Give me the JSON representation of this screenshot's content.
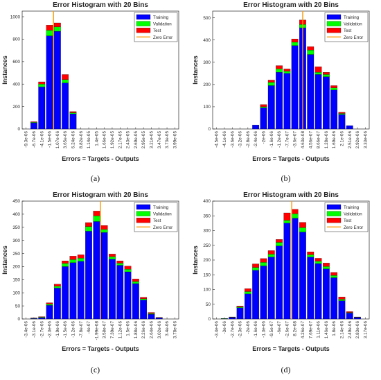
{
  "chart_data": [
    {
      "type": "bar",
      "title": "Error Histogram with 20 Bins",
      "xlabel": "Errors = Targets - Outputs",
      "ylabel": "Instances",
      "caption": "(a)",
      "ylim": [
        0,
        1050
      ],
      "yticks": [
        0,
        200,
        400,
        600,
        800,
        1000
      ],
      "categories": [
        "-9.3e-06",
        "-6.7e-06",
        "-4.1e-06",
        "-1.5e-06",
        "1.07e-06",
        "3.65e-06",
        "6.24e-06",
        "8.82e-06",
        "1.14e-05",
        "1.4e-05",
        "1.66e-05",
        "1.92e-05",
        "2.17e-05",
        "2.43e-05",
        "2.69e-05",
        "2.95e-05",
        "3.21e-05",
        "3.47e-05",
        "3.73e-05",
        "3.99e-05"
      ],
      "zero_error_index": 3.5,
      "series": [
        {
          "name": "Training",
          "color": "#0000ff",
          "values": [
            0,
            55,
            375,
            830,
            870,
            410,
            135,
            0,
            0,
            0,
            0,
            0,
            0,
            0,
            0,
            0,
            0,
            0,
            0,
            0
          ]
        },
        {
          "name": "Validation",
          "color": "#00ff00",
          "values": [
            0,
            5,
            25,
            50,
            40,
            30,
            10,
            0,
            0,
            0,
            0,
            0,
            0,
            0,
            0,
            0,
            0,
            0,
            0,
            0
          ]
        },
        {
          "name": "Test",
          "color": "#ff0000",
          "values": [
            0,
            5,
            20,
            45,
            35,
            45,
            10,
            0,
            0,
            0,
            0,
            0,
            0,
            0,
            0,
            0,
            0,
            0,
            0,
            0
          ]
        }
      ],
      "legend": [
        "Training",
        "Validation",
        "Test",
        "Zero Error"
      ],
      "zero_error_color": "#ff9900",
      "legend_position": "top-right"
    },
    {
      "type": "bar",
      "title": "Error Histogram with 20 Bins",
      "xlabel": "Errors = Targets - Outputs",
      "ylabel": "Instances",
      "caption": "(b)",
      "ylim": [
        0,
        530
      ],
      "yticks": [
        0,
        100,
        200,
        300,
        400,
        500
      ],
      "categories": [
        "-4.5e-06",
        "-4.1e-06",
        "-3.6e-06",
        "-3.2e-06",
        "-2.8e-06",
        "-2.4e-06",
        "-2e-06",
        "-1.6e-06",
        "-1.2e-06",
        "-7.7e-07",
        "-3.6e-07",
        "4.63e-08",
        "4.56e-07",
        "8.66e-07",
        "1.28e-06",
        "1.69e-06",
        "2.1e-06",
        "2.51e-06",
        "2.92e-06",
        "3.33e-06"
      ],
      "zero_error_index": 11.0,
      "series": [
        {
          "name": "Training",
          "color": "#0000ff",
          "values": [
            0,
            0,
            0,
            0,
            0,
            18,
            95,
            195,
            255,
            250,
            375,
            455,
            335,
            245,
            235,
            175,
            65,
            15,
            0,
            0
          ]
        },
        {
          "name": "Validation",
          "color": "#00ff00",
          "values": [
            0,
            0,
            0,
            0,
            0,
            0,
            5,
            15,
            15,
            10,
            15,
            15,
            20,
            10,
            10,
            10,
            5,
            0,
            0,
            0
          ]
        },
        {
          "name": "Test",
          "color": "#ff0000",
          "values": [
            0,
            0,
            0,
            0,
            0,
            0,
            10,
            10,
            15,
            10,
            15,
            20,
            15,
            25,
            10,
            10,
            5,
            0,
            0,
            0
          ]
        }
      ],
      "legend": [
        "Training",
        "Validation",
        "Test",
        "Zero Error"
      ],
      "zero_error_color": "#ff9900",
      "legend_position": "top-right"
    },
    {
      "type": "bar",
      "title": "Error Histogram with 20 Bins",
      "xlabel": "Errors = Targets - Outputs",
      "ylabel": "Instances",
      "caption": "(c)",
      "ylim": [
        0,
        450
      ],
      "yticks": [
        0,
        50,
        100,
        150,
        200,
        250,
        300,
        350,
        400,
        450
      ],
      "categories": [
        "-3.4e-06",
        "-3.1e-06",
        "-2.7e-06",
        "-2.3e-06",
        "-1.9e-06",
        "-1.5e-06",
        "-1.2e-06",
        "-7.8e-07",
        "-4e-07",
        "-1.99e-08",
        "3.58e-07",
        "7.39e-07",
        "1.12e-06",
        "1.5e-06",
        "1.88e-06",
        "2.26e-06",
        "2.64e-06",
        "3.02e-06",
        "3.4e-06",
        "3.78e-06"
      ],
      "zero_error_index": 9.5,
      "series": [
        {
          "name": "Training",
          "color": "#0000ff",
          "values": [
            0,
            2,
            5,
            52,
            118,
            200,
            215,
            220,
            335,
            372,
            330,
            228,
            205,
            180,
            135,
            72,
            18,
            4,
            0,
            0
          ]
        },
        {
          "name": "Validation",
          "color": "#00ff00",
          "values": [
            0,
            1,
            2,
            5,
            7,
            12,
            12,
            12,
            18,
            22,
            12,
            10,
            8,
            10,
            8,
            5,
            3,
            1,
            0,
            0
          ]
        },
        {
          "name": "Test",
          "color": "#ff0000",
          "values": [
            0,
            1,
            2,
            5,
            8,
            10,
            13,
            13,
            15,
            18,
            15,
            10,
            9,
            12,
            10,
            6,
            4,
            1,
            0,
            0
          ]
        }
      ],
      "legend": [
        "Training",
        "Validation",
        "Test",
        "Zero Error"
      ],
      "zero_error_color": "#ff9900",
      "legend_position": "top-right"
    },
    {
      "type": "bar",
      "title": "Error Histogram with 20 Bins",
      "xlabel": "Errors = Targets - Outputs",
      "ylabel": "Instances",
      "caption": "(d)",
      "ylim": [
        0,
        400
      ],
      "yticks": [
        0,
        50,
        100,
        150,
        200,
        250,
        300,
        350,
        400
      ],
      "categories": [
        "-3.4e-06",
        "-3e-06",
        "-2.7e-06",
        "-2.3e-06",
        "-2e-06",
        "-1.6e-06",
        "-1.3e-06",
        "-9.5e-07",
        "-6e-07",
        "-2.6e-07",
        "8.2e-08",
        "4.26e-07",
        "7.69e-07",
        "1.11e-06",
        "1.46e-06",
        "1.8e-06",
        "2.14e-06",
        "2.49e-06",
        "2.83e-06",
        "3.17e-06"
      ],
      "zero_error_index": 9.6,
      "series": [
        {
          "name": "Training",
          "color": "#0000ff",
          "values": [
            0,
            1,
            5,
            38,
            85,
            165,
            180,
            210,
            248,
            325,
            342,
            295,
            210,
            188,
            170,
            140,
            62,
            20,
            5,
            0
          ]
        },
        {
          "name": "Validation",
          "color": "#00ff00",
          "values": [
            0,
            1,
            1,
            3,
            8,
            10,
            12,
            10,
            12,
            10,
            15,
            15,
            8,
            8,
            8,
            8,
            5,
            2,
            1,
            0
          ]
        },
        {
          "name": "Test",
          "color": "#ff0000",
          "values": [
            0,
            0,
            1,
            3,
            10,
            12,
            13,
            12,
            10,
            25,
            15,
            18,
            10,
            10,
            12,
            10,
            8,
            3,
            1,
            0
          ]
        }
      ],
      "legend": [
        "Training",
        "Validation",
        "Test",
        "Zero Error"
      ],
      "zero_error_color": "#ff9900",
      "legend_position": "top-right"
    }
  ]
}
